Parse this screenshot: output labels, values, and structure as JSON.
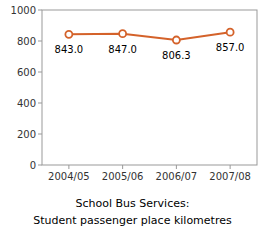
{
  "chart_data": {
    "type": "line",
    "title": "School Bus Services:",
    "subtitle": "Student passenger place kilometres",
    "categories": [
      "2004/05",
      "2005/06",
      "2006/07",
      "2007/08"
    ],
    "values": [
      843.0,
      847.0,
      806.3,
      857.0
    ],
    "value_labels": [
      "843.0",
      "847.0",
      "806.3",
      "857.0"
    ],
    "color": "#d4622a",
    "marker": "circle",
    "ylim": [
      0,
      1000
    ],
    "yticks": [
      0,
      200,
      400,
      600,
      800,
      1000
    ],
    "grid": false,
    "data_labels": true
  }
}
